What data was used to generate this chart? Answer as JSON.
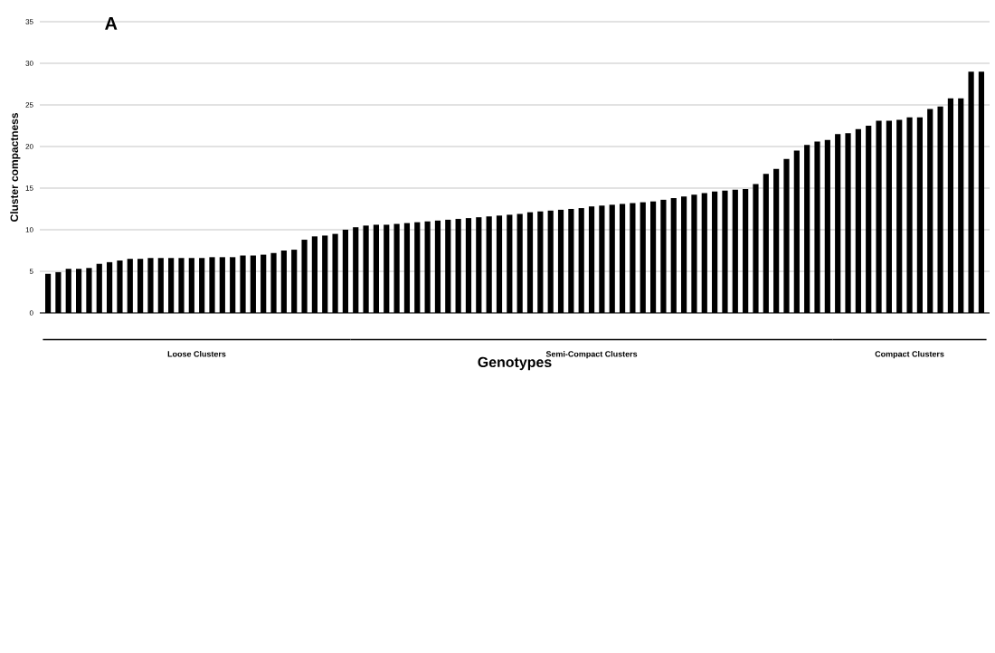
{
  "chart_data": {
    "type": "bar",
    "title": "A",
    "xlabel": "Genotypes",
    "ylabel": "Cluster compactness",
    "categories": [
      null,
      null,
      null,
      null,
      null,
      null,
      null,
      null,
      null,
      null,
      null,
      null,
      null,
      null,
      null,
      null,
      null,
      null,
      null,
      null,
      null,
      null,
      null,
      null,
      null,
      null,
      null,
      null,
      null,
      null,
      null,
      null,
      null,
      null,
      null,
      null,
      null,
      null,
      null,
      null,
      null,
      null,
      null,
      null,
      null,
      null,
      null,
      null,
      null,
      null,
      null,
      null,
      null,
      null,
      null,
      null,
      null,
      null,
      null,
      null,
      null,
      null,
      null,
      null,
      null,
      null,
      null,
      null,
      null,
      null,
      null,
      null,
      null,
      null,
      null,
      null,
      null,
      null,
      null,
      null,
      null,
      null,
      null,
      null,
      null,
      null,
      null,
      null,
      null,
      null,
      null,
      null
    ],
    "values": [
      4.7,
      4.9,
      5.3,
      5.3,
      5.4,
      5.9,
      6.1,
      6.3,
      6.5,
      6.5,
      6.6,
      6.6,
      6.6,
      6.6,
      6.6,
      6.6,
      6.7,
      6.7,
      6.7,
      6.9,
      6.9,
      7.0,
      7.2,
      7.5,
      7.6,
      8.8,
      9.2,
      9.3,
      9.5,
      10.0,
      10.3,
      10.5,
      10.6,
      10.6,
      10.7,
      10.8,
      10.9,
      11.0,
      11.1,
      11.2,
      11.3,
      11.4,
      11.5,
      11.6,
      11.7,
      11.8,
      11.9,
      12.1,
      12.2,
      12.3,
      12.4,
      12.5,
      12.6,
      12.8,
      12.9,
      13.0,
      13.1,
      13.2,
      13.3,
      13.4,
      13.6,
      13.8,
      14.0,
      14.2,
      14.4,
      14.6,
      14.7,
      14.8,
      14.9,
      15.5,
      16.7,
      17.3,
      18.5,
      19.5,
      20.2,
      20.6,
      20.8,
      21.5,
      21.6,
      22.1,
      22.5,
      23.1,
      23.1,
      23.2,
      23.5,
      23.5,
      24.5,
      24.8,
      25.8,
      25.8,
      29.0,
      29.0
    ],
    "color": "#000000",
    "ylim": [
      0,
      35
    ],
    "yticks": [
      0,
      5,
      10,
      15,
      20,
      25,
      30,
      35
    ],
    "grid": "y",
    "annotations": [
      "Loose Clusters",
      "Semi-Compact Clusters",
      "Compact Clusters"
    ]
  }
}
